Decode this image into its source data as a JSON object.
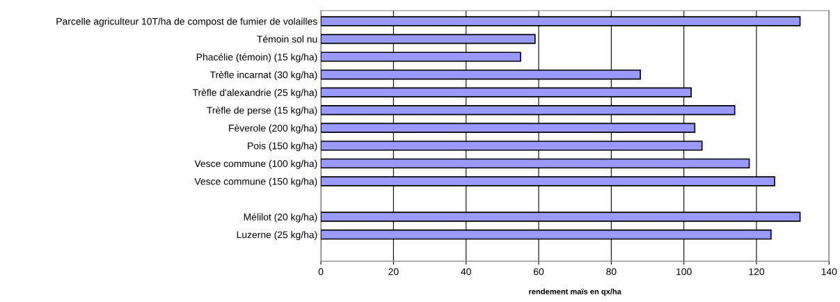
{
  "chart_data": {
    "type": "bar",
    "orientation": "horizontal",
    "xlabel": "rendement maïs en qx/ha",
    "categories": [
      "Parcelle agriculteur 10T/ha de compost de fumier de volailles",
      "Témoin sol nu",
      "Phacélie (témoin) (15 kg/ha)",
      "Trèfle incarnat (30 kg/ha)",
      "Trèfle d'alexandrie (25 kg/ha)",
      "Trèfle de perse (15 kg/ha)",
      "Fèverole (200 kg/ha)",
      "Pois (150 kg/ha)",
      "Vesce commune (100 kg/ha)",
      "Vesce commune (150 kg/ha)",
      null,
      "Mélilot (20 kg/ha)",
      "Luzerne (25 kg/ha)",
      null
    ],
    "values": [
      132,
      59,
      55,
      88,
      102,
      114,
      103,
      105,
      118,
      125,
      null,
      132,
      124,
      null
    ],
    "color": "#9999ff",
    "xlim": [
      0,
      140
    ],
    "xticks": [
      0,
      20,
      40,
      60,
      80,
      100,
      120,
      140
    ],
    "grid": "x"
  }
}
